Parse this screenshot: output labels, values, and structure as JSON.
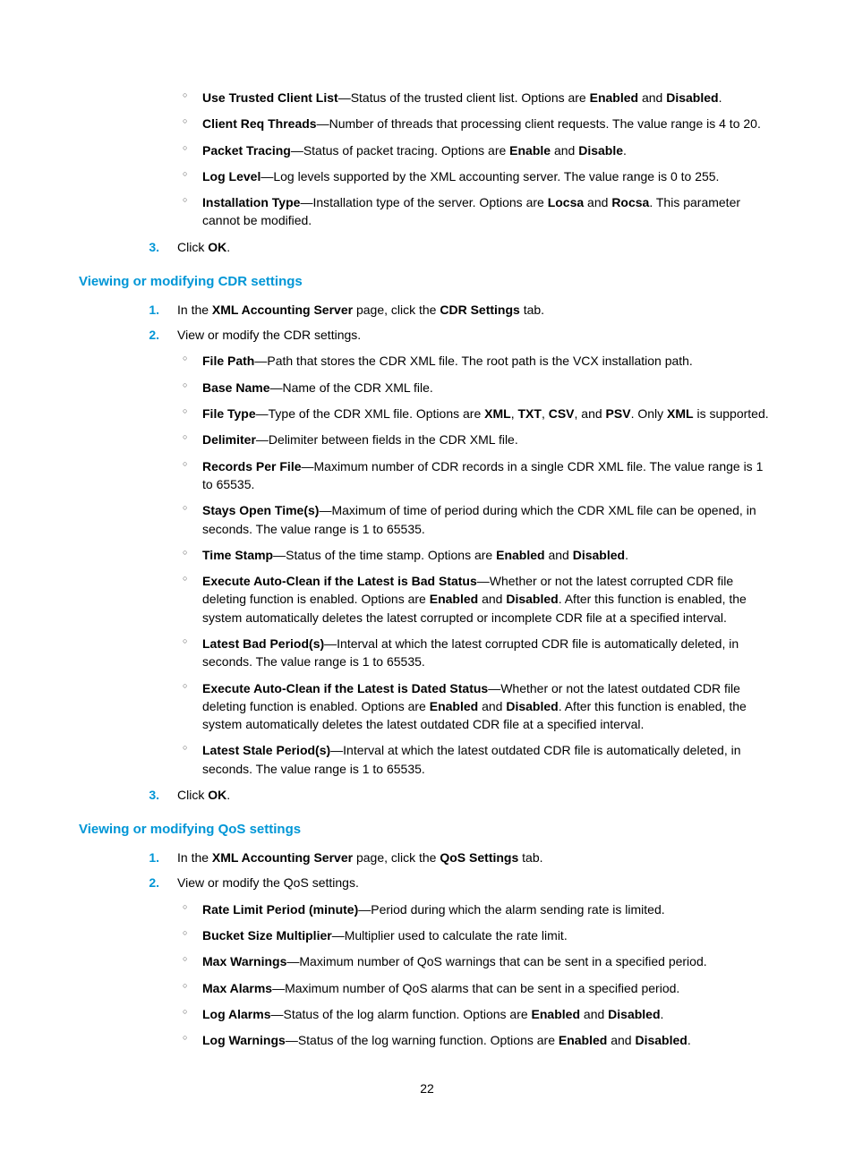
{
  "page_number": "22",
  "top_bullets": [
    {
      "term": "Use Trusted Client List",
      "rest": "—Status of the trusted client list. Options are ",
      "after_bold": [
        "Enabled",
        " and ",
        "Disabled",
        "."
      ]
    },
    {
      "term": "Client Req Threads",
      "rest": "—Number of threads that processing client requests. The value range is 4 to 20."
    },
    {
      "term": "Packet Tracing",
      "rest": "—Status of packet tracing. Options are ",
      "after_bold": [
        "Enable",
        " and ",
        "Disable",
        "."
      ]
    },
    {
      "term": "Log Level",
      "rest": "—Log levels supported by the XML accounting server. The value range is 0 to 255."
    },
    {
      "term": "Installation Type",
      "rest": "—Installation type of the server. Options are ",
      "after_bold": [
        "Locsa",
        " and ",
        "Rocsa",
        ". This parameter cannot be modified."
      ]
    }
  ],
  "step3_top_prefix": "Click ",
  "step3_top_bold": "OK",
  "step3_top_suffix": ".",
  "heading_cdr": "Viewing or modifying CDR settings",
  "cdr_step1_prefix": "In the ",
  "cdr_step1_b1": "XML Accounting Server",
  "cdr_step1_mid": " page, click the ",
  "cdr_step1_b2": "CDR Settings",
  "cdr_step1_suffix": " tab.",
  "cdr_step2": "View or modify the CDR settings.",
  "cdr_bullets": [
    {
      "term": "File Path",
      "rest": "—Path that stores the CDR XML file. The root path is the VCX installation path."
    },
    {
      "term": "Base Name",
      "rest": "—Name of the CDR XML file."
    },
    {
      "term": "File Type",
      "rest": "—Type of the CDR XML file. Options are ",
      "after_bold": [
        "XML",
        ", ",
        "TXT",
        ", ",
        "CSV",
        ", and ",
        "PSV",
        ". Only ",
        "XML",
        " is supported."
      ]
    },
    {
      "term": "Delimiter",
      "rest": "—Delimiter between fields in the CDR XML file."
    },
    {
      "term": "Records Per File",
      "rest": "—Maximum number of CDR records in a single CDR XML file. The value range is 1 to 65535."
    },
    {
      "term": "Stays Open Time(s)",
      "rest": "—Maximum of time of period during which the CDR XML file can be opened, in seconds. The value range is 1 to 65535."
    },
    {
      "term": "Time Stamp",
      "rest": "—Status of the time stamp. Options are ",
      "after_bold": [
        "Enabled",
        " and ",
        "Disabled",
        "."
      ]
    },
    {
      "term": "Execute Auto-Clean if the Latest is Bad Status",
      "rest": "—Whether or not the latest corrupted CDR file deleting function is enabled. Options are ",
      "after_bold": [
        "Enabled",
        " and ",
        "Disabled",
        ". After this function is enabled, the system automatically deletes the latest corrupted or incomplete CDR file at a specified interval."
      ]
    },
    {
      "term": "Latest Bad Period(s)",
      "rest": "—Interval at which the latest corrupted CDR file is automatically deleted, in seconds. The value range is 1 to 65535."
    },
    {
      "term": "Execute Auto-Clean if the Latest is Dated Status",
      "rest": "—Whether or not the latest outdated CDR file deleting function is enabled. Options are ",
      "after_bold": [
        "Enabled",
        " and ",
        "Disabled",
        ". After this function is enabled, the system automatically deletes the latest outdated CDR file at a specified interval."
      ]
    },
    {
      "term": "Latest Stale Period(s)",
      "rest": "—Interval at which the latest outdated CDR file is automatically deleted, in seconds. The value range is 1 to 65535."
    }
  ],
  "cdr_step3_prefix": "Click ",
  "cdr_step3_bold": "OK",
  "cdr_step3_suffix": ".",
  "heading_qos": "Viewing or modifying QoS settings",
  "qos_step1_prefix": "In the ",
  "qos_step1_b1": "XML Accounting Server",
  "qos_step1_mid": " page, click the ",
  "qos_step1_b2": "QoS Settings",
  "qos_step1_suffix": " tab.",
  "qos_step2": "View or modify the QoS settings.",
  "qos_bullets": [
    {
      "term": "Rate Limit Period (minute)",
      "rest": "—Period during which the alarm sending rate is limited."
    },
    {
      "term": "Bucket Size Multiplier",
      "rest": "—Multiplier used to calculate the rate limit."
    },
    {
      "term": "Max Warnings",
      "rest": "—Maximum number of QoS warnings that can be sent in a specified period."
    },
    {
      "term": "Max Alarms",
      "rest": "—Maximum number of QoS alarms that can be sent in a specified period."
    },
    {
      "term": "Log Alarms",
      "rest": "—Status of the log alarm function. Options are ",
      "after_bold": [
        "Enabled",
        " and ",
        "Disabled",
        "."
      ]
    },
    {
      "term": "Log Warnings",
      "rest": "—Status of the log warning function. Options are ",
      "after_bold": [
        "Enabled",
        " and ",
        "Disabled",
        "."
      ]
    }
  ]
}
